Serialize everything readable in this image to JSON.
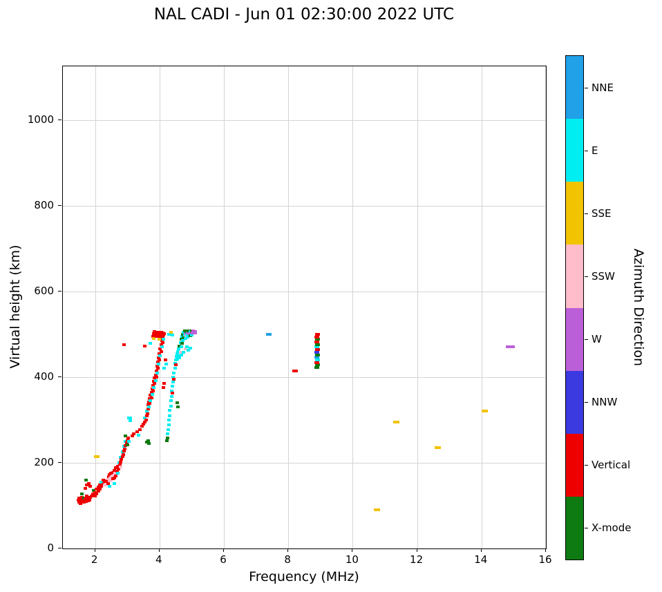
{
  "chart_data": {
    "type": "scatter",
    "title": "NAL CADI - Jun 01 02:30:00 2022 UTC",
    "xlabel": "Frequency (MHz)",
    "ylabel": "Virtual height (km)",
    "colorbar_title": "Azimuth Direction",
    "xlim": [
      1,
      16
    ],
    "ylim": [
      0,
      1125
    ],
    "xticks": [
      2,
      4,
      6,
      8,
      10,
      12,
      14,
      16
    ],
    "yticks": [
      0,
      200,
      400,
      600,
      800,
      1000
    ],
    "grid": true,
    "directions": [
      {
        "key": "NNE",
        "label": "NNE",
        "color": "#20A1E8"
      },
      {
        "key": "E",
        "label": "E",
        "color": "#00EEF2"
      },
      {
        "key": "SSE",
        "label": "SSE",
        "color": "#F2C300"
      },
      {
        "key": "SSW",
        "label": "SSW",
        "color": "#FFBCCB"
      },
      {
        "key": "W",
        "label": "W",
        "color": "#BB5FD8"
      },
      {
        "key": "NNW",
        "label": "NNW",
        "color": "#3A3AE0"
      },
      {
        "key": "V",
        "label": "Vertical",
        "color": "#EE0000"
      },
      {
        "key": "X",
        "label": "X-mode",
        "color": "#0E7A12"
      }
    ],
    "points": [
      [
        1.48,
        113,
        "V"
      ],
      [
        1.5,
        108,
        "V"
      ],
      [
        1.51,
        118,
        "V"
      ],
      [
        1.53,
        112,
        "V"
      ],
      [
        1.55,
        105,
        "V"
      ],
      [
        1.57,
        115,
        "V"
      ],
      [
        1.6,
        110,
        "V"
      ],
      [
        1.6,
        120,
        "V"
      ],
      [
        1.63,
        114,
        "V"
      ],
      [
        1.65,
        108,
        "V"
      ],
      [
        1.65,
        118,
        "X"
      ],
      [
        1.68,
        112,
        "V"
      ],
      [
        1.7,
        116,
        "V"
      ],
      [
        1.72,
        110,
        "V"
      ],
      [
        1.73,
        122,
        "V"
      ],
      [
        1.75,
        115,
        "V"
      ],
      [
        1.78,
        112,
        "V"
      ],
      [
        1.8,
        118,
        "V"
      ],
      [
        1.82,
        113,
        "V"
      ],
      [
        1.85,
        120,
        "V"
      ],
      [
        1.6,
        128,
        "X"
      ],
      [
        1.7,
        140,
        "V"
      ],
      [
        1.75,
        148,
        "V"
      ],
      [
        1.8,
        152,
        "V"
      ],
      [
        1.85,
        145,
        "V"
      ],
      [
        1.72,
        160,
        "X"
      ],
      [
        1.9,
        122,
        "V"
      ],
      [
        1.93,
        128,
        "V"
      ],
      [
        1.95,
        135,
        "X"
      ],
      [
        1.97,
        125,
        "V"
      ],
      [
        2.0,
        122,
        "V"
      ],
      [
        2.0,
        131,
        "V"
      ],
      [
        2.05,
        128,
        "V"
      ],
      [
        2.05,
        138,
        "V"
      ],
      [
        2.1,
        133,
        "V"
      ],
      [
        2.1,
        143,
        "V"
      ],
      [
        2.15,
        138,
        "V"
      ],
      [
        2.15,
        148,
        "V"
      ],
      [
        2.2,
        145,
        "V"
      ],
      [
        2.2,
        155,
        "E"
      ],
      [
        2.25,
        150,
        "V"
      ],
      [
        2.25,
        160,
        "V"
      ],
      [
        2.3,
        148,
        "SSW"
      ],
      [
        2.3,
        156,
        "V"
      ],
      [
        2.05,
        215,
        "SSE",
        8
      ],
      [
        2.35,
        150,
        "SSW"
      ],
      [
        2.35,
        158,
        "V"
      ],
      [
        2.4,
        152,
        "V"
      ],
      [
        2.4,
        162,
        "SSW"
      ],
      [
        2.42,
        168,
        "V"
      ],
      [
        2.45,
        145,
        "E"
      ],
      [
        2.45,
        158,
        "SSW"
      ],
      [
        2.45,
        172,
        "V"
      ],
      [
        2.48,
        165,
        "SSW"
      ],
      [
        2.5,
        160,
        "SSW"
      ],
      [
        2.5,
        175,
        "V"
      ],
      [
        2.52,
        168,
        "SSW"
      ],
      [
        2.55,
        162,
        "V"
      ],
      [
        2.55,
        178,
        "V"
      ],
      [
        2.58,
        170,
        "SSW"
      ],
      [
        2.6,
        152,
        "E"
      ],
      [
        2.6,
        165,
        "V"
      ],
      [
        2.6,
        182,
        "V"
      ],
      [
        2.62,
        175,
        "SSW"
      ],
      [
        2.65,
        170,
        "V"
      ],
      [
        2.65,
        188,
        "V"
      ],
      [
        2.68,
        180,
        "V"
      ],
      [
        2.7,
        175,
        "E"
      ],
      [
        2.7,
        192,
        "V"
      ],
      [
        2.72,
        185,
        "V"
      ],
      [
        2.75,
        190,
        "V"
      ],
      [
        2.75,
        200,
        "E"
      ],
      [
        2.78,
        195,
        "V"
      ],
      [
        2.8,
        190,
        "SSW"
      ],
      [
        2.8,
        202,
        "V"
      ],
      [
        2.8,
        212,
        "E"
      ],
      [
        2.82,
        208,
        "V"
      ],
      [
        2.85,
        215,
        "V"
      ],
      [
        2.85,
        225,
        "E"
      ],
      [
        2.88,
        220,
        "V"
      ],
      [
        2.9,
        228,
        "V"
      ],
      [
        2.9,
        238,
        "E"
      ],
      [
        2.92,
        232,
        "V"
      ],
      [
        2.95,
        240,
        "V"
      ],
      [
        2.95,
        250,
        "E"
      ],
      [
        2.95,
        262,
        "X"
      ],
      [
        2.98,
        246,
        "V"
      ],
      [
        3.0,
        242,
        "X"
      ],
      [
        3.0,
        252,
        "V"
      ],
      [
        3.02,
        258,
        "V"
      ],
      [
        3.05,
        250,
        "E"
      ],
      [
        2.9,
        475,
        "V"
      ],
      [
        3.07,
        305,
        "E",
        7
      ],
      [
        3.1,
        298,
        "E"
      ],
      [
        3.15,
        262,
        "V"
      ],
      [
        3.2,
        268,
        "V"
      ],
      [
        3.3,
        272,
        "V"
      ],
      [
        3.35,
        265,
        "E"
      ],
      [
        3.4,
        278,
        "V"
      ],
      [
        3.45,
        285,
        "V"
      ],
      [
        3.55,
        472,
        "V"
      ],
      [
        3.6,
        248,
        "X"
      ],
      [
        3.65,
        252,
        "X"
      ],
      [
        3.68,
        245,
        "X"
      ],
      [
        3.5,
        290,
        "V"
      ],
      [
        3.55,
        295,
        "V"
      ],
      [
        3.55,
        305,
        "E"
      ],
      [
        3.58,
        300,
        "V"
      ],
      [
        3.6,
        310,
        "V"
      ],
      [
        3.6,
        320,
        "E"
      ],
      [
        3.62,
        315,
        "V"
      ],
      [
        3.65,
        325,
        "V"
      ],
      [
        3.65,
        335,
        "V"
      ],
      [
        3.68,
        330,
        "E"
      ],
      [
        3.68,
        342,
        "V"
      ],
      [
        3.7,
        338,
        "V"
      ],
      [
        3.7,
        350,
        "V"
      ],
      [
        3.72,
        345,
        "E"
      ],
      [
        3.72,
        358,
        "V"
      ],
      [
        3.75,
        352,
        "V"
      ],
      [
        3.75,
        365,
        "V"
      ],
      [
        3.78,
        360,
        "E"
      ],
      [
        3.78,
        372,
        "V"
      ],
      [
        3.8,
        368,
        "V"
      ],
      [
        3.8,
        380,
        "V"
      ],
      [
        3.82,
        375,
        "E"
      ],
      [
        3.82,
        390,
        "V"
      ],
      [
        3.85,
        385,
        "V"
      ],
      [
        3.85,
        398,
        "V"
      ],
      [
        3.88,
        392,
        "E"
      ],
      [
        3.88,
        405,
        "V"
      ],
      [
        3.9,
        400,
        "V"
      ],
      [
        3.9,
        415,
        "V"
      ],
      [
        3.92,
        410,
        "E"
      ],
      [
        3.92,
        425,
        "V"
      ],
      [
        3.95,
        420,
        "V"
      ],
      [
        3.95,
        435,
        "V"
      ],
      [
        3.98,
        430,
        "E"
      ],
      [
        3.98,
        445,
        "V"
      ],
      [
        4.0,
        440,
        "V"
      ],
      [
        4.0,
        455,
        "V"
      ],
      [
        4.02,
        450,
        "E"
      ],
      [
        4.02,
        465,
        "V"
      ],
      [
        4.05,
        460,
        "V"
      ],
      [
        4.05,
        475,
        "V"
      ],
      [
        4.08,
        470,
        "E"
      ],
      [
        4.08,
        485,
        "V"
      ],
      [
        4.1,
        480,
        "V"
      ],
      [
        4.1,
        492,
        "V"
      ],
      [
        4.12,
        488,
        "E"
      ],
      [
        3.72,
        478,
        "E"
      ],
      [
        3.8,
        495,
        "V"
      ],
      [
        3.82,
        490,
        "SSE"
      ],
      [
        3.82,
        502,
        "V"
      ],
      [
        3.85,
        498,
        "V"
      ],
      [
        3.85,
        506,
        "V"
      ],
      [
        3.88,
        500,
        "V"
      ],
      [
        3.9,
        495,
        "V"
      ],
      [
        3.9,
        505,
        "V"
      ],
      [
        3.92,
        500,
        "V"
      ],
      [
        3.95,
        496,
        "V"
      ],
      [
        3.95,
        504,
        "V"
      ],
      [
        3.98,
        500,
        "V"
      ],
      [
        4.0,
        488,
        "SSE"
      ],
      [
        4.0,
        495,
        "V"
      ],
      [
        4.0,
        505,
        "V"
      ],
      [
        4.02,
        500,
        "V"
      ],
      [
        4.05,
        497,
        "V"
      ],
      [
        4.05,
        505,
        "V"
      ],
      [
        4.08,
        500,
        "V"
      ],
      [
        4.1,
        503,
        "V"
      ],
      [
        4.12,
        498,
        "V"
      ],
      [
        4.15,
        502,
        "V"
      ],
      [
        4.3,
        500,
        "E"
      ],
      [
        4.35,
        505,
        "SSE"
      ],
      [
        4.4,
        498,
        "E"
      ],
      [
        4.12,
        375,
        "V"
      ],
      [
        4.15,
        385,
        "V"
      ],
      [
        4.15,
        420,
        "E"
      ],
      [
        4.18,
        440,
        "V"
      ],
      [
        4.2,
        430,
        "E"
      ],
      [
        4.22,
        252,
        "X"
      ],
      [
        4.25,
        258,
        "X"
      ],
      [
        4.25,
        268,
        "E"
      ],
      [
        4.28,
        278,
        "E"
      ],
      [
        4.3,
        288,
        "E"
      ],
      [
        4.3,
        300,
        "E"
      ],
      [
        4.32,
        310,
        "E"
      ],
      [
        4.32,
        322,
        "E"
      ],
      [
        4.35,
        332,
        "E"
      ],
      [
        4.35,
        345,
        "E"
      ],
      [
        4.38,
        355,
        "E"
      ],
      [
        4.38,
        368,
        "E"
      ],
      [
        4.4,
        362,
        "V"
      ],
      [
        4.4,
        378,
        "E"
      ],
      [
        4.42,
        388,
        "E"
      ],
      [
        4.42,
        400,
        "E"
      ],
      [
        4.45,
        395,
        "V"
      ],
      [
        4.45,
        410,
        "E"
      ],
      [
        4.48,
        420,
        "E"
      ],
      [
        4.48,
        432,
        "E"
      ],
      [
        4.5,
        428,
        "V"
      ],
      [
        4.5,
        440,
        "E"
      ],
      [
        4.52,
        448,
        "E"
      ],
      [
        4.55,
        340,
        "X"
      ],
      [
        4.55,
        442,
        "E"
      ],
      [
        4.55,
        455,
        "E"
      ],
      [
        4.58,
        330,
        "X"
      ],
      [
        4.58,
        460,
        "E"
      ],
      [
        4.6,
        450,
        "E"
      ],
      [
        4.6,
        465,
        "E"
      ],
      [
        4.62,
        445,
        "E"
      ],
      [
        4.62,
        472,
        "X"
      ],
      [
        4.65,
        458,
        "SSW"
      ],
      [
        4.65,
        480,
        "E"
      ],
      [
        4.68,
        452,
        "E"
      ],
      [
        4.68,
        470,
        "E"
      ],
      [
        4.68,
        488,
        "X"
      ],
      [
        4.7,
        478,
        "X"
      ],
      [
        4.7,
        495,
        "E"
      ],
      [
        4.72,
        485,
        "E"
      ],
      [
        4.72,
        500,
        "X"
      ],
      [
        4.75,
        458,
        "E"
      ],
      [
        4.75,
        492,
        "X"
      ],
      [
        4.75,
        505,
        "E"
      ],
      [
        4.78,
        498,
        "E"
      ],
      [
        4.78,
        508,
        "X"
      ],
      [
        4.8,
        465,
        "SSW"
      ],
      [
        4.8,
        490,
        "E"
      ],
      [
        4.8,
        502,
        "W"
      ],
      [
        4.82,
        496,
        "SSW"
      ],
      [
        4.82,
        506,
        "X"
      ],
      [
        4.85,
        470,
        "E"
      ],
      [
        4.85,
        500,
        "E"
      ],
      [
        4.85,
        508,
        "X"
      ],
      [
        4.88,
        494,
        "E"
      ],
      [
        4.88,
        503,
        "W"
      ],
      [
        4.9,
        462,
        "E"
      ],
      [
        4.9,
        498,
        "E"
      ],
      [
        4.9,
        507,
        "X"
      ],
      [
        4.92,
        502,
        "W"
      ],
      [
        4.95,
        468,
        "E"
      ],
      [
        4.95,
        497,
        "X"
      ],
      [
        4.95,
        506,
        "E"
      ],
      [
        4.98,
        503,
        "W"
      ],
      [
        5.0,
        498,
        "E"
      ],
      [
        5.0,
        507,
        "X"
      ],
      [
        5.02,
        503,
        "W"
      ],
      [
        5.05,
        507,
        "W"
      ],
      [
        5.08,
        503,
        "W",
        8
      ],
      [
        5.12,
        506,
        "W"
      ],
      [
        7.4,
        500,
        "NNE",
        8
      ],
      [
        8.2,
        415,
        "V",
        8
      ],
      [
        8.88,
        422,
        "X",
        7
      ],
      [
        8.9,
        428,
        "X",
        7
      ],
      [
        8.88,
        434,
        "V",
        7
      ],
      [
        8.9,
        440,
        "E",
        7
      ],
      [
        8.88,
        446,
        "NNE",
        7
      ],
      [
        8.9,
        452,
        "X",
        7
      ],
      [
        8.88,
        458,
        "NNW",
        7
      ],
      [
        8.9,
        464,
        "V",
        7
      ],
      [
        8.88,
        470,
        "E",
        7
      ],
      [
        8.9,
        476,
        "X",
        7
      ],
      [
        8.88,
        482,
        "V",
        7
      ],
      [
        8.9,
        488,
        "X",
        7
      ],
      [
        8.88,
        494,
        "V",
        7
      ],
      [
        8.9,
        500,
        "V",
        7
      ],
      [
        10.75,
        90,
        "SSE",
        9
      ],
      [
        11.35,
        295,
        "SSE",
        9
      ],
      [
        12.65,
        235,
        "SSE",
        9
      ],
      [
        14.1,
        320,
        "SSE",
        9
      ],
      [
        14.9,
        470,
        "W",
        13
      ]
    ]
  }
}
